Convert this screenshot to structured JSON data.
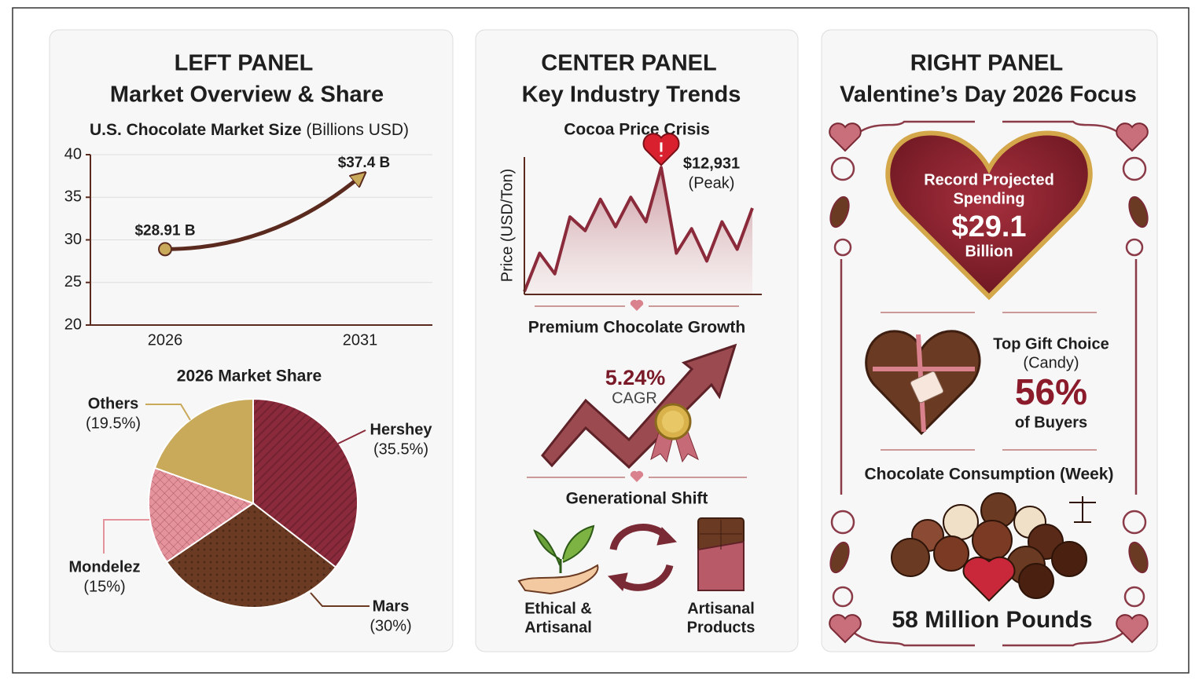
{
  "left_panel": {
    "heading": "LEFT PANEL",
    "subheading": "Market Overview & Share"
  },
  "center_panel": {
    "heading": "CENTER PANEL",
    "subheading": "Key Industry Trends",
    "peak_value": "$12,931",
    "peak_label": "(Peak)",
    "growth_title": "Premium Chocolate Growth",
    "growth_rate": "5.24%",
    "growth_rate_label": "CAGR",
    "shift_title": "Generational Shift",
    "shift_left": [
      "Ethical &",
      "Artisanal"
    ],
    "shift_right": [
      "Artisanal",
      "Products"
    ]
  },
  "right_panel": {
    "heading": "RIGHT PANEL",
    "subheading": "Valentine’s Day 2026 Focus",
    "spending_lines": [
      "Record Projected",
      "Spending"
    ],
    "spending_value": "$29.1",
    "spending_unit": "Billion",
    "gift_lines": [
      "Top Gift Choice",
      "(Candy)"
    ],
    "gift_value": "56%",
    "gift_unit": "of Buyers",
    "consumption_title": "Chocolate Consumption (Week)",
    "consumption_value": "58 Million Pounds"
  },
  "chart_data": [
    {
      "type": "line",
      "title": "U.S. Chocolate Market Size",
      "unit": "(Billions USD)",
      "categories": [
        "2026",
        "2031"
      ],
      "values": [
        28.91,
        37.4
      ],
      "value_labels": [
        "$28.91 B",
        "$37.4 B"
      ],
      "color": "#5a2a1e",
      "ylim": [
        20,
        40
      ],
      "yticks": [
        20,
        25,
        30,
        35,
        40
      ],
      "grid": true
    },
    {
      "type": "pie",
      "title": "2026 Market Share",
      "categories": [
        "Hershey",
        "Mars",
        "Mondelez",
        "Others"
      ],
      "values": [
        35.5,
        30,
        15,
        19.5
      ],
      "value_labels": [
        "(35.5%)",
        "(30%)",
        "(15%)",
        "(19.5%)"
      ],
      "colors": [
        "#8b2a3a",
        "#6b3a22",
        "#e4939d",
        "#c9a95a"
      ]
    },
    {
      "type": "area",
      "title": "Cocoa Price Crisis",
      "y_label": "Price (USD/Ton)",
      "categories": [
        null,
        null,
        null,
        null,
        null,
        null,
        null,
        null,
        null,
        null,
        null,
        null,
        null,
        null,
        null,
        null
      ],
      "values": [
        300,
        4200,
        2100,
        7900,
        6500,
        9700,
        6900,
        9900,
        7400,
        12931,
        4200,
        6700,
        3400,
        7400,
        4600,
        8800
      ],
      "color": "#8b2a3a",
      "ylim": [
        0,
        14000
      ]
    }
  ]
}
